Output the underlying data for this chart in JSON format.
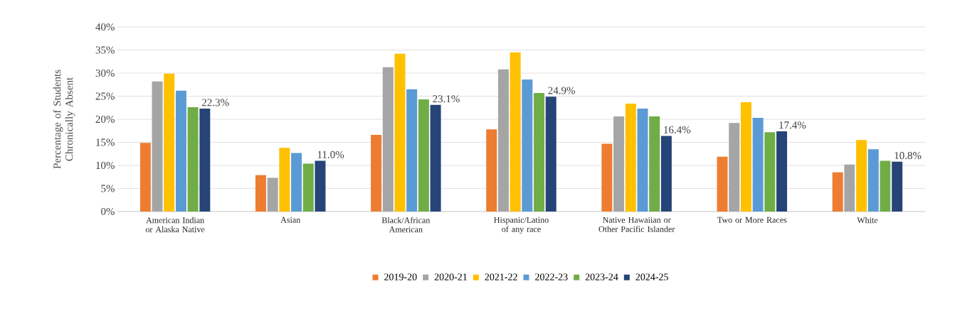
{
  "chart_data": {
    "type": "bar",
    "ylabel": "Percentage of Students Chronically Absent",
    "categories": [
      "American Indian or Alaska Native",
      "Asian",
      "Black/African American",
      "Hispanic/Latino of any race",
      "Native Hawaiian or Other Pacific Islander",
      "Two or More Races",
      "White"
    ],
    "series": [
      {
        "name": "2019-20",
        "color": "#ed7d31",
        "values": [
          14.9,
          7.9,
          16.6,
          17.8,
          14.7,
          11.9,
          8.5
        ]
      },
      {
        "name": "2020-21",
        "color": "#a5a5a5",
        "values": [
          28.2,
          7.3,
          31.3,
          30.8,
          20.6,
          19.2,
          10.2
        ]
      },
      {
        "name": "2021-22",
        "color": "#ffc000",
        "values": [
          29.9,
          13.8,
          34.2,
          34.5,
          23.4,
          23.7,
          15.5
        ]
      },
      {
        "name": "2022-23",
        "color": "#5b9bd5",
        "values": [
          26.2,
          12.7,
          26.5,
          28.6,
          22.3,
          20.3,
          13.5
        ]
      },
      {
        "name": "2023-24",
        "color": "#70ad47",
        "values": [
          22.6,
          10.4,
          24.3,
          25.7,
          20.6,
          17.2,
          11.0
        ]
      },
      {
        "name": "2024-25",
        "color": "#264478",
        "values": [
          22.3,
          11.0,
          23.1,
          24.9,
          16.4,
          17.4,
          10.8
        ],
        "value_labels": [
          "22.3%",
          "11.0%",
          "23.1%",
          "24.9%",
          "16.4%",
          "17.4%",
          "10.8%"
        ]
      }
    ],
    "ylim": [
      0,
      40
    ],
    "yticks": [
      {
        "value": 0,
        "label": "0%"
      },
      {
        "value": 5,
        "label": "5%"
      },
      {
        "value": 10,
        "label": "10%"
      },
      {
        "value": 15,
        "label": "15%"
      },
      {
        "value": 20,
        "label": "20%"
      },
      {
        "value": 25,
        "label": "25%"
      },
      {
        "value": 30,
        "label": "30%"
      },
      {
        "value": 35,
        "label": "35%"
      },
      {
        "value": 40,
        "label": "40%"
      }
    ],
    "grid": "y",
    "legend": "bottom"
  }
}
